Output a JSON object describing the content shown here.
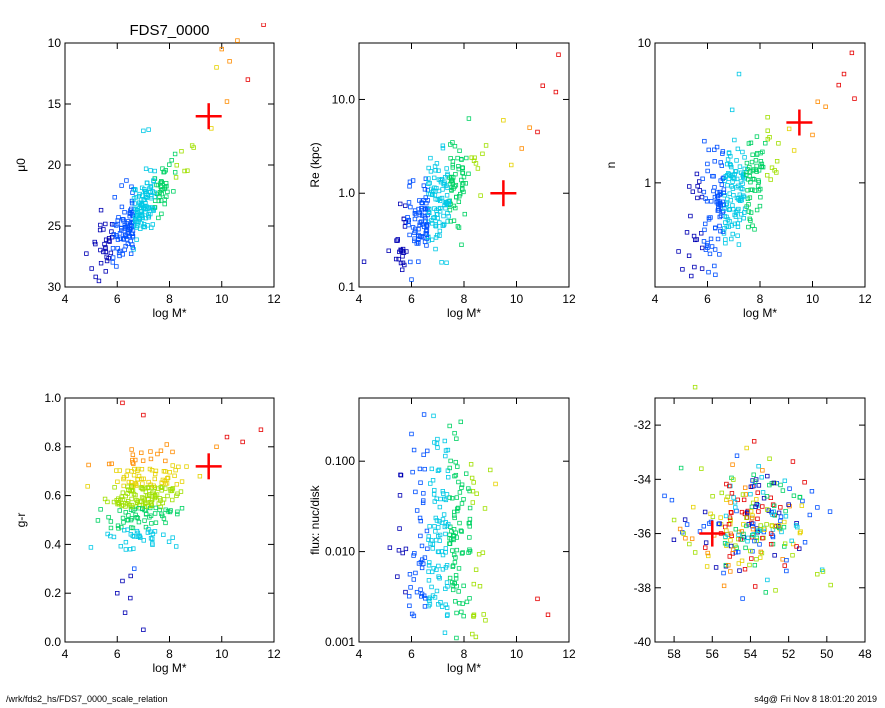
{
  "colors": {
    "marker": "#ff0000",
    "axes": "#000000",
    "scale": [
      "#0000b4",
      "#0050ff",
      "#00c8e6",
      "#00d264",
      "#a0e000",
      "#e6d200",
      "#ff8c00",
      "#e60000"
    ]
  },
  "footer": {
    "left": "/wrk/fds2_hs/FDS7_0000_scale_relation",
    "right": "s4g@  Fri Nov  8 18:01:20 2019"
  },
  "chart_data": [
    {
      "type": "scatter",
      "title": "FDS7_0000",
      "xlabel": "log M*",
      "ylabel": "μ0",
      "xlim": [
        4,
        12
      ],
      "ylim": [
        30,
        10
      ],
      "log_y": false,
      "xticks": [
        "4",
        "6",
        "8",
        "10",
        "12"
      ],
      "yticks": [
        "10",
        "15",
        "20",
        "25",
        "30"
      ],
      "cloud": {
        "x_center": 6.8,
        "y_center": 24.0,
        "slope": -2.2,
        "spread": 1.2
      },
      "extra_points": [
        [
          9.8,
          12.0
        ],
        [
          10.3,
          11.5
        ],
        [
          10.6,
          9.8
        ],
        [
          11.0,
          13.0
        ],
        [
          11.6,
          8.5
        ],
        [
          10.2,
          14.8
        ],
        [
          9.6,
          17.0
        ],
        [
          7.2,
          17.1
        ],
        [
          7.0,
          17.2
        ],
        [
          10.0,
          10.5
        ]
      ],
      "marker": {
        "x": 9.5,
        "y": 16.0
      }
    },
    {
      "type": "scatter",
      "title": "",
      "xlabel": "log M*",
      "ylabel": "Re (kpc)",
      "xlim": [
        4,
        12
      ],
      "ylim": [
        0.1,
        40
      ],
      "log_y": true,
      "xticks": [
        "4",
        "6",
        "8",
        "10",
        "12"
      ],
      "yticks": [
        "0.1",
        "1.0",
        "10.0"
      ],
      "cloud": {
        "x_center": 6.8,
        "y_center": 0.7,
        "slope": 0.28,
        "spread": 0.22
      },
      "extra_points": [
        [
          11.6,
          30
        ],
        [
          11.5,
          12
        ],
        [
          11.0,
          14
        ],
        [
          10.8,
          4.5
        ],
        [
          10.5,
          5.0
        ],
        [
          10.2,
          3.0
        ],
        [
          9.8,
          2.0
        ],
        [
          9.5,
          6.0
        ],
        [
          6.0,
          0.12
        ],
        [
          5.6,
          0.18
        ]
      ],
      "marker": {
        "x": 9.5,
        "y": 1.0
      }
    },
    {
      "type": "scatter",
      "title": "",
      "xlabel": "log M*",
      "ylabel": "n",
      "xlim": [
        4,
        12
      ],
      "ylim": [
        0.18,
        10
      ],
      "log_y": true,
      "xticks": [
        "4",
        "6",
        "8",
        "10",
        "12"
      ],
      "yticks": [
        "1",
        "10"
      ],
      "cloud": {
        "x_center": 6.9,
        "y_center": 0.85,
        "slope": 0.13,
        "spread": 0.2
      },
      "extra_points": [
        [
          11.5,
          8.5
        ],
        [
          11.2,
          6.0
        ],
        [
          11.0,
          5.0
        ],
        [
          10.5,
          3.5
        ],
        [
          11.6,
          4.0
        ],
        [
          7.2,
          6.0
        ],
        [
          6.3,
          0.22
        ],
        [
          5.5,
          0.25
        ],
        [
          10.0,
          2.2
        ],
        [
          10.2,
          3.8
        ]
      ],
      "marker": {
        "x": 9.5,
        "y": 2.7
      }
    },
    {
      "type": "scatter",
      "title": "",
      "xlabel": "log M*",
      "ylabel": "g-r",
      "xlim": [
        4,
        12
      ],
      "ylim": [
        0.0,
        1.0
      ],
      "log_y": false,
      "xticks": [
        "4",
        "6",
        "8",
        "10",
        "12"
      ],
      "yticks": [
        "0.0",
        "0.2",
        "0.4",
        "0.6",
        "0.8",
        "1.0"
      ],
      "cloud": {
        "x_center": 7.0,
        "y_center": 0.58,
        "slope": 0.04,
        "spread": 0.1
      },
      "extra_points": [
        [
          6.2,
          0.98
        ],
        [
          7.0,
          0.93
        ],
        [
          11.5,
          0.87
        ],
        [
          10.8,
          0.82
        ],
        [
          10.2,
          0.84
        ],
        [
          9.8,
          0.8
        ],
        [
          6.2,
          0.25
        ],
        [
          6.0,
          0.2
        ],
        [
          6.5,
          0.18
        ],
        [
          7.0,
          0.05
        ],
        [
          6.3,
          0.12
        ]
      ],
      "marker": {
        "x": 9.5,
        "y": 0.72
      }
    },
    {
      "type": "scatter",
      "title": "",
      "xlabel": "log M*",
      "ylabel": "flux: nuc/disk",
      "xlim": [
        4,
        12
      ],
      "ylim": [
        0.001,
        0.5
      ],
      "log_y": true,
      "xticks": [
        "4",
        "6",
        "8",
        "10",
        "12"
      ],
      "yticks": [
        "0.001",
        "0.010",
        "0.100"
      ],
      "cloud": {
        "x_center": 7.2,
        "y_center": 0.012,
        "slope": 0,
        "spread": 0.6
      },
      "extra_points": [
        [
          6.0,
          0.2
        ],
        [
          6.6,
          0.13
        ],
        [
          8.8,
          0.03
        ],
        [
          10.8,
          0.003
        ],
        [
          11.2,
          0.002
        ],
        [
          5.6,
          0.07
        ],
        [
          9.0,
          0.08
        ]
      ],
      "marker": null
    },
    {
      "type": "scatter",
      "title": "",
      "xlabel": "",
      "ylabel": "",
      "xlim": [
        59,
        48
      ],
      "ylim": [
        -40,
        -31
      ],
      "log_y": false,
      "xticks": [
        "58",
        "56",
        "54",
        "52",
        "50",
        "48"
      ],
      "yticks": [
        "-32",
        "-34",
        "-36",
        "-38",
        "-40"
      ],
      "cloud": {
        "x_center": 54.0,
        "y_center": -35.5,
        "slope": 0,
        "spread": 1.0,
        "x_spread": 2.4
      },
      "extra_points": [
        [
          56.9,
          -30.6
        ],
        [
          50.5,
          -37.5
        ],
        [
          49.8,
          -37.9
        ],
        [
          50.2,
          -37.4
        ],
        [
          57.5,
          -36.0
        ],
        [
          58.0,
          -35.5
        ]
      ],
      "marker": {
        "x": 56.0,
        "y": -36.0
      }
    }
  ]
}
